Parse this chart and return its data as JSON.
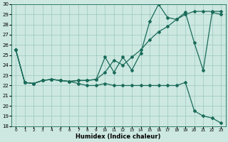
{
  "xlabel": "Humidex (Indice chaleur)",
  "bg_color": "#cce8e0",
  "line_color": "#1a6b5a",
  "ylim": [
    18,
    30
  ],
  "xlim": [
    -0.5,
    23.5
  ],
  "yticks": [
    18,
    19,
    20,
    21,
    22,
    23,
    24,
    25,
    26,
    27,
    28,
    29,
    30
  ],
  "xticks": [
    0,
    1,
    2,
    3,
    4,
    5,
    6,
    7,
    8,
    9,
    10,
    11,
    12,
    13,
    14,
    15,
    16,
    17,
    18,
    19,
    20,
    21,
    22,
    23
  ],
  "line1_x": [
    0,
    1,
    2,
    3,
    4,
    5,
    6,
    7,
    8,
    9,
    10,
    11,
    12,
    13,
    14,
    15,
    16,
    17,
    18,
    19,
    20,
    21,
    22,
    23
  ],
  "line1_y": [
    25.5,
    22.3,
    22.2,
    22.5,
    22.6,
    22.5,
    22.4,
    22.5,
    22.5,
    22.6,
    24.8,
    23.3,
    24.8,
    23.5,
    25.2,
    28.3,
    30.0,
    28.7,
    28.5,
    29.2,
    26.2,
    23.5,
    29.2,
    29.0
  ],
  "line2_x": [
    0,
    1,
    2,
    3,
    4,
    5,
    6,
    7,
    8,
    9,
    10,
    11,
    12,
    13,
    14,
    15,
    16,
    17,
    18,
    19,
    20,
    21,
    22,
    23
  ],
  "line2_y": [
    25.5,
    22.3,
    22.2,
    22.5,
    22.6,
    22.5,
    22.4,
    22.5,
    22.5,
    22.6,
    23.3,
    24.5,
    24.0,
    24.8,
    25.5,
    26.5,
    27.3,
    27.8,
    28.5,
    29.0,
    29.3,
    29.3,
    29.3,
    29.3
  ],
  "line3_x": [
    0,
    1,
    2,
    3,
    4,
    5,
    6,
    7,
    8,
    9,
    10,
    11,
    12,
    13,
    14,
    15,
    16,
    17,
    18,
    19,
    20,
    21,
    22,
    23
  ],
  "line3_y": [
    25.5,
    22.3,
    22.2,
    22.5,
    22.6,
    22.5,
    22.4,
    22.2,
    22.0,
    22.0,
    22.2,
    22.0,
    22.0,
    22.0,
    22.0,
    22.0,
    22.0,
    22.0,
    22.0,
    22.3,
    19.5,
    19.0,
    18.8,
    18.3
  ],
  "ytick_fontsize": 5,
  "xtick_fontsize": 4.2,
  "xlabel_fontsize": 6
}
